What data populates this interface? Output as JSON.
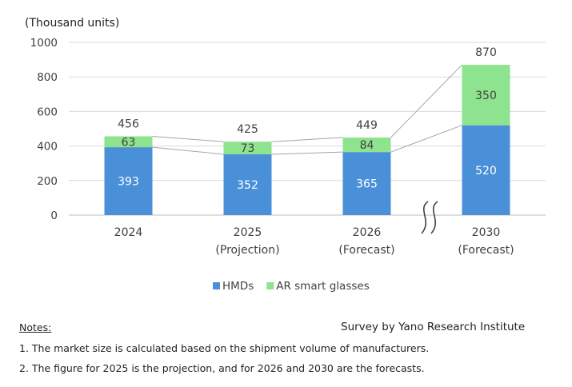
{
  "chart_data": {
    "type": "bar",
    "stacked": true,
    "ylabel": "(Thousand units)",
    "ylim": [
      0,
      1000
    ],
    "yticks": [
      0,
      200,
      400,
      600,
      800,
      1000
    ],
    "grid": true,
    "categories": [
      {
        "year": "2024",
        "sub": ""
      },
      {
        "year": "2025",
        "sub": "(Projection)"
      },
      {
        "year": "2026",
        "sub": "(Forecast)"
      },
      {
        "year": "2030",
        "sub": "(Forecast)"
      }
    ],
    "series": [
      {
        "name": "HMDs",
        "color": "#4a90d9",
        "values": [
          393,
          352,
          365,
          520
        ]
      },
      {
        "name": "AR smart glasses",
        "color": "#8ee38e",
        "values": [
          63,
          73,
          84,
          350
        ]
      }
    ],
    "totals": [
      456,
      425,
      449,
      870
    ],
    "axis_break_before": "2030",
    "legend_position": "bottom-center"
  },
  "notes": {
    "heading": "Notes:",
    "items": [
      "1. The market size is calculated based on the shipment volume of manufacturers.",
      "2. The figure for 2025 is the projection, and for 2026 and 2030 are the forecasts."
    ]
  },
  "source": "Survey by Yano Research Institute",
  "colors": {
    "grid": "#d9d9d9",
    "axis_text": "#404040",
    "connector": "#a6a6a6"
  }
}
